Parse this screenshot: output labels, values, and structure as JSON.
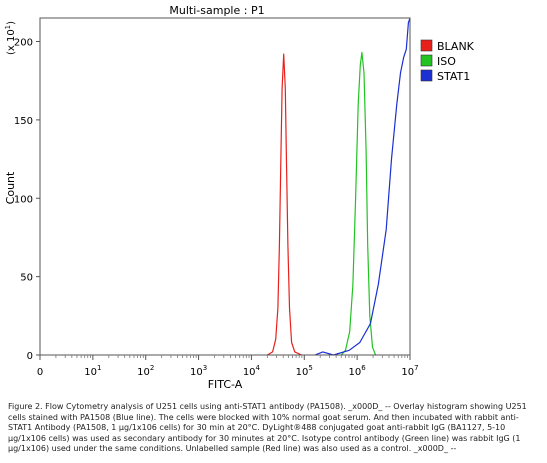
{
  "chart_data": {
    "type": "line",
    "title": "Multi-sample : P1",
    "xlabel": "FITC-A",
    "ylabel": "Count",
    "y_multiplier": "(x 10",
    "y_multiplier_exp": "1",
    "y_multiplier_close": ")",
    "x_scale": "log",
    "xlim_log10": [
      0,
      7
    ],
    "ylim": [
      0,
      215
    ],
    "y_ticks": [
      0,
      50,
      100,
      150,
      200
    ],
    "x_ticks": [
      {
        "log10": 0,
        "base": "0",
        "exp": ""
      },
      {
        "log10": 1,
        "base": "10",
        "exp": "1"
      },
      {
        "log10": 2,
        "base": "10",
        "exp": "2"
      },
      {
        "log10": 3,
        "base": "10",
        "exp": "3"
      },
      {
        "log10": 4,
        "base": "10",
        "exp": "4"
      },
      {
        "log10": 5,
        "base": "10",
        "exp": "5"
      },
      {
        "log10": 6,
        "base": "10",
        "exp": "6"
      },
      {
        "log10": 7,
        "base": "10",
        "exp": "7"
      }
    ],
    "legend_position": "right",
    "series": [
      {
        "name": "BLANK",
        "color": "#e8201c",
        "points": [
          [
            4.3,
            0
          ],
          [
            4.4,
            2
          ],
          [
            4.46,
            10
          ],
          [
            4.5,
            30
          ],
          [
            4.53,
            70
          ],
          [
            4.56,
            130
          ],
          [
            4.58,
            170
          ],
          [
            4.61,
            192
          ],
          [
            4.64,
            170
          ],
          [
            4.66,
            130
          ],
          [
            4.69,
            70
          ],
          [
            4.72,
            30
          ],
          [
            4.76,
            8
          ],
          [
            4.82,
            2
          ],
          [
            4.95,
            0
          ]
        ]
      },
      {
        "name": "ISO",
        "color": "#22c322",
        "points": [
          [
            5.7,
            0
          ],
          [
            5.78,
            3
          ],
          [
            5.86,
            15
          ],
          [
            5.92,
            45
          ],
          [
            5.97,
            100
          ],
          [
            6.02,
            160
          ],
          [
            6.06,
            185
          ],
          [
            6.09,
            193
          ],
          [
            6.13,
            180
          ],
          [
            6.17,
            130
          ],
          [
            6.2,
            70
          ],
          [
            6.24,
            25
          ],
          [
            6.29,
            5
          ],
          [
            6.35,
            0
          ]
        ]
      },
      {
        "name": "STAT1",
        "color": "#1b2fd2",
        "points": [
          [
            5.2,
            0
          ],
          [
            5.35,
            2
          ],
          [
            5.55,
            0
          ],
          [
            5.85,
            3
          ],
          [
            6.05,
            8
          ],
          [
            6.25,
            20
          ],
          [
            6.4,
            45
          ],
          [
            6.55,
            80
          ],
          [
            6.65,
            125
          ],
          [
            6.75,
            160
          ],
          [
            6.82,
            180
          ],
          [
            6.88,
            190
          ],
          [
            6.93,
            195
          ],
          [
            6.97,
            212
          ],
          [
            7.0,
            215
          ]
        ]
      }
    ]
  },
  "caption": "Figure 2. Flow Cytometry analysis of U251 cells using anti-STAT1 antibody (PA1508). _x000D_ -- Overlay histogram showing U251 cells stained with PA1508 (Blue line). The cells were blocked with 10% normal goat serum. And then incubated with rabbit anti-STAT1 Antibody (PA1508, 1 µg/1x106 cells) for 30 min at 20°C. DyLight®488 conjugated goat anti-rabbit IgG (BA1127, 5-10 µg/1x106 cells) was used as secondary antibody for 30 minutes at 20°C. Isotype control antibody (Green line) was rabbit IgG (1 µg/1x106) used under the same conditions. Unlabelled sample (Red line) was also used as a control. _x000D_ --"
}
